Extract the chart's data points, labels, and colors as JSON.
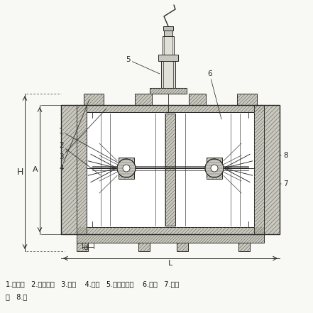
{
  "figsize": [
    4.41,
    4.41
  ],
  "dpi": 100,
  "bg_color": "#f8f8f4",
  "line_color": "#2a2a2a",
  "hatch_fc": "#c8c8c0",
  "white": "#ffffff",
  "caption1": "1.球轴承   2.前导向件   3.张圈    4.壳体   5.前置放大器    6.叶轮   7.轴承",
  "caption2": "承   8.轴",
  "label_H": "H",
  "label_A": "A",
  "label_d": "d",
  "label_L": "L"
}
